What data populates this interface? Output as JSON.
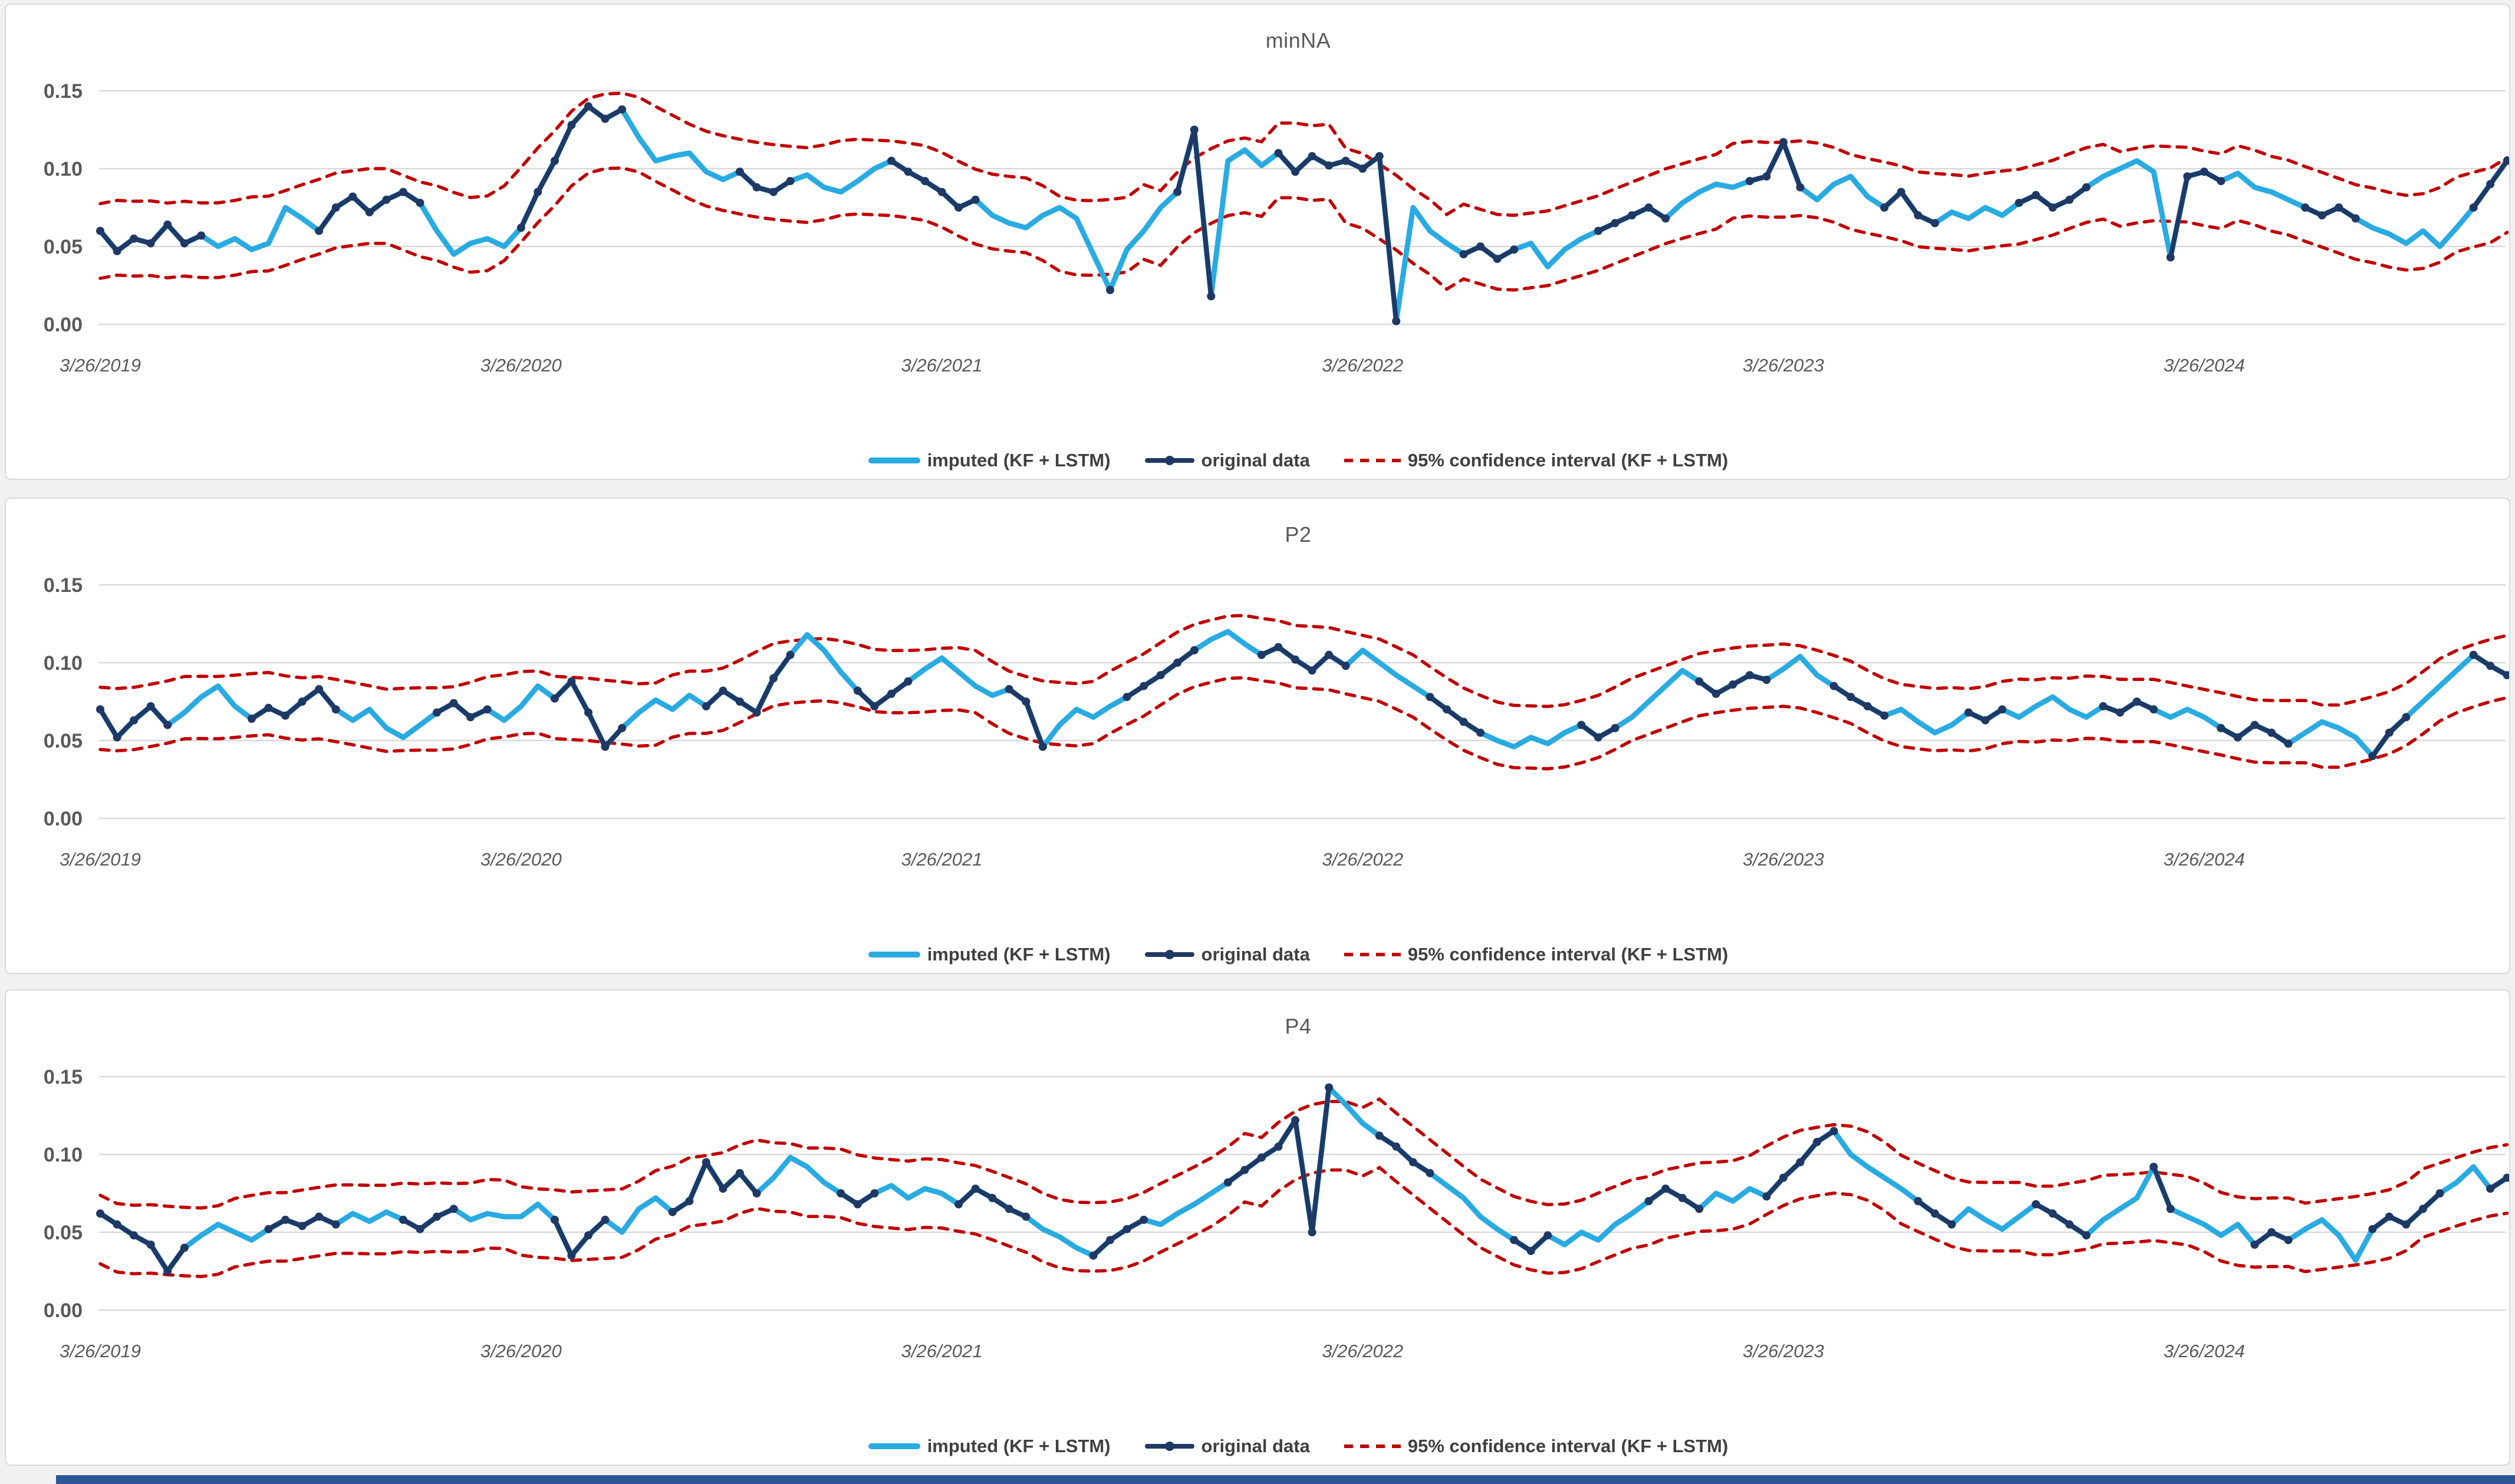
{
  "page": {
    "background": "#F1F1F1",
    "bottom_strip_color": "#2B5797"
  },
  "colors": {
    "imputed": "#29ABE2",
    "original": "#1F3864",
    "ci": "#C00000",
    "grid": "#D9D9D9",
    "axis_text": "#595959",
    "title_text": "#595959",
    "legend_text": "#404040",
    "panel_border": "#D9D9D9",
    "panel_bg": "#FFFFFF"
  },
  "legend": {
    "imputed": "imputed (KF + LSTM)",
    "original": "original data",
    "ci": "95% confidence interval (KF + LSTM)"
  },
  "chart_data": [
    {
      "type": "line",
      "title": "minNA",
      "ylim": [
        0,
        0.15
      ],
      "y_tick_values": [
        0,
        0.05,
        0.1,
        0.15
      ],
      "y_tick_labels": [
        "0.00",
        "0.05",
        "0.10",
        "0.15"
      ],
      "x_tick_labels": [
        "3/26/2019",
        "3/26/2020",
        "3/26/2021",
        "3/26/2022",
        "3/26/2023",
        "3/26/2024"
      ],
      "points_per_year": 25,
      "x_note": "144 samples, ~biweekly, 3/26/2019 through late 2024; grid on; legend bottom center",
      "series_names": [
        "imputed (KF + LSTM)",
        "original data",
        "95% confidence interval (KF + LSTM)"
      ],
      "values": [
        0.06,
        0.047,
        0.055,
        0.052,
        0.064,
        0.052,
        0.057,
        0.05,
        0.055,
        0.048,
        0.052,
        0.075,
        0.068,
        0.06,
        0.075,
        0.082,
        0.072,
        0.08,
        0.085,
        0.078,
        0.06,
        0.045,
        0.052,
        0.055,
        0.05,
        0.062,
        0.085,
        0.105,
        0.128,
        0.14,
        0.132,
        0.138,
        0.12,
        0.105,
        0.108,
        0.11,
        0.098,
        0.093,
        0.098,
        0.088,
        0.085,
        0.092,
        0.096,
        0.088,
        0.085,
        0.092,
        0.1,
        0.105,
        0.098,
        0.092,
        0.085,
        0.075,
        0.08,
        0.07,
        0.065,
        0.062,
        0.07,
        0.075,
        0.068,
        0.045,
        0.022,
        0.048,
        0.06,
        0.075,
        0.085,
        0.125,
        0.018,
        0.105,
        0.112,
        0.102,
        0.11,
        0.098,
        0.108,
        0.102,
        0.105,
        0.1,
        0.108,
        0.002,
        0.075,
        0.06,
        0.052,
        0.045,
        0.05,
        0.042,
        0.048,
        0.052,
        0.037,
        0.048,
        0.055,
        0.06,
        0.065,
        0.07,
        0.075,
        0.068,
        0.078,
        0.085,
        0.09,
        0.088,
        0.092,
        0.095,
        0.117,
        0.088,
        0.08,
        0.09,
        0.095,
        0.082,
        0.075,
        0.085,
        0.07,
        0.065,
        0.072,
        0.068,
        0.075,
        0.07,
        0.078,
        0.083,
        0.075,
        0.08,
        0.088,
        0.095,
        0.1,
        0.105,
        0.098,
        0.043,
        0.095,
        0.098,
        0.092,
        0.097,
        0.088,
        0.085,
        0.08,
        0.075,
        0.07,
        0.075,
        0.068,
        0.062,
        0.058,
        0.052,
        0.06,
        0.05,
        0.062,
        0.075,
        0.09,
        0.105
      ],
      "original_mask": "111111100000011111110000011111110000001111000001111110000000100011100011111111000111100001111100001111000011110000111110000111100001111000000111",
      "ci": {
        "method": "centered_moving_average",
        "window": 7,
        "offset": 0.024
      }
    },
    {
      "type": "line",
      "title": "P2",
      "ylim": [
        0,
        0.15
      ],
      "y_tick_values": [
        0,
        0.05,
        0.1,
        0.15
      ],
      "y_tick_labels": [
        "0.00",
        "0.05",
        "0.10",
        "0.15"
      ],
      "x_tick_labels": [
        "3/26/2019",
        "3/26/2020",
        "3/26/2021",
        "3/26/2022",
        "3/26/2023",
        "3/26/2024"
      ],
      "points_per_year": 25,
      "x_note": "144 samples, ~biweekly, 3/26/2019 through late 2024; grid on; legend bottom center",
      "series_names": [
        "imputed (KF + LSTM)",
        "original data",
        "95% confidence interval (KF + LSTM)"
      ],
      "values": [
        0.07,
        0.052,
        0.063,
        0.072,
        0.06,
        0.068,
        0.078,
        0.085,
        0.072,
        0.064,
        0.071,
        0.066,
        0.075,
        0.083,
        0.07,
        0.063,
        0.07,
        0.058,
        0.052,
        0.06,
        0.068,
        0.074,
        0.065,
        0.07,
        0.063,
        0.072,
        0.085,
        0.077,
        0.088,
        0.068,
        0.046,
        0.058,
        0.068,
        0.076,
        0.07,
        0.079,
        0.072,
        0.082,
        0.075,
        0.068,
        0.09,
        0.105,
        0.118,
        0.108,
        0.094,
        0.082,
        0.072,
        0.08,
        0.088,
        0.096,
        0.103,
        0.094,
        0.085,
        0.079,
        0.083,
        0.075,
        0.046,
        0.06,
        0.07,
        0.065,
        0.072,
        0.078,
        0.085,
        0.092,
        0.1,
        0.108,
        0.115,
        0.12,
        0.112,
        0.105,
        0.11,
        0.102,
        0.095,
        0.105,
        0.098,
        0.108,
        0.1,
        0.092,
        0.085,
        0.078,
        0.07,
        0.062,
        0.055,
        0.05,
        0.046,
        0.052,
        0.048,
        0.055,
        0.06,
        0.052,
        0.058,
        0.065,
        0.075,
        0.085,
        0.095,
        0.088,
        0.08,
        0.086,
        0.092,
        0.089,
        0.096,
        0.104,
        0.092,
        0.085,
        0.078,
        0.072,
        0.066,
        0.07,
        0.062,
        0.055,
        0.06,
        0.068,
        0.063,
        0.07,
        0.065,
        0.072,
        0.078,
        0.07,
        0.065,
        0.072,
        0.068,
        0.075,
        0.07,
        0.065,
        0.07,
        0.065,
        0.058,
        0.052,
        0.06,
        0.055,
        0.048,
        0.055,
        0.062,
        0.058,
        0.052,
        0.04,
        0.055,
        0.065,
        0.075,
        0.085,
        0.095,
        0.105,
        0.098,
        0.092
      ],
      "original_mask": "111110000111111000001111000111110000111111000111100000111000011111000111111000011110000011100001111100011110000111000001111000111110000111000111",
      "ci": {
        "method": "centered_moving_average",
        "window": 7,
        "offset": 0.02
      }
    },
    {
      "type": "line",
      "title": "P4",
      "ylim": [
        0,
        0.15
      ],
      "y_tick_values": [
        0,
        0.05,
        0.1,
        0.15
      ],
      "y_tick_labels": [
        "0.00",
        "0.05",
        "0.10",
        "0.15"
      ],
      "x_tick_labels": [
        "3/26/2019",
        "3/26/2020",
        "3/26/2021",
        "3/26/2022",
        "3/26/2023",
        "3/26/2024"
      ],
      "points_per_year": 25,
      "x_note": "144 samples, ~biweekly, 3/26/2019 through late 2024; grid on; legend bottom center",
      "series_names": [
        "imputed (KF + LSTM)",
        "original data",
        "95% confidence interval (KF + LSTM)"
      ],
      "values": [
        0.062,
        0.055,
        0.048,
        0.042,
        0.025,
        0.04,
        0.048,
        0.055,
        0.05,
        0.045,
        0.052,
        0.058,
        0.054,
        0.06,
        0.055,
        0.062,
        0.057,
        0.063,
        0.058,
        0.052,
        0.06,
        0.065,
        0.058,
        0.062,
        0.06,
        0.06,
        0.068,
        0.058,
        0.035,
        0.048,
        0.058,
        0.05,
        0.065,
        0.072,
        0.063,
        0.07,
        0.095,
        0.078,
        0.088,
        0.075,
        0.085,
        0.098,
        0.092,
        0.082,
        0.075,
        0.068,
        0.075,
        0.08,
        0.072,
        0.078,
        0.075,
        0.068,
        0.078,
        0.072,
        0.065,
        0.06,
        0.052,
        0.047,
        0.04,
        0.035,
        0.045,
        0.052,
        0.058,
        0.055,
        0.062,
        0.068,
        0.075,
        0.082,
        0.09,
        0.098,
        0.105,
        0.122,
        0.05,
        0.143,
        0.132,
        0.12,
        0.112,
        0.105,
        0.095,
        0.088,
        0.08,
        0.072,
        0.06,
        0.052,
        0.045,
        0.038,
        0.048,
        0.042,
        0.05,
        0.045,
        0.055,
        0.062,
        0.07,
        0.078,
        0.072,
        0.065,
        0.075,
        0.07,
        0.078,
        0.073,
        0.085,
        0.095,
        0.108,
        0.115,
        0.1,
        0.092,
        0.085,
        0.078,
        0.07,
        0.062,
        0.055,
        0.065,
        0.058,
        0.052,
        0.06,
        0.068,
        0.062,
        0.055,
        0.048,
        0.058,
        0.065,
        0.072,
        0.092,
        0.065,
        0.06,
        0.055,
        0.048,
        0.055,
        0.042,
        0.05,
        0.045,
        0.052,
        0.058,
        0.048,
        0.032,
        0.052,
        0.06,
        0.055,
        0.065,
        0.075,
        0.082,
        0.092,
        0.078,
        0.085
      ],
      "original_mask": "111111000011111000111100000111100011111100001110000111110001111000011111110011110000111000001111000111110000111000011110001100001110000111110011",
      "ci": {
        "method": "centered_moving_average",
        "window": 7,
        "offset": 0.022
      }
    }
  ]
}
